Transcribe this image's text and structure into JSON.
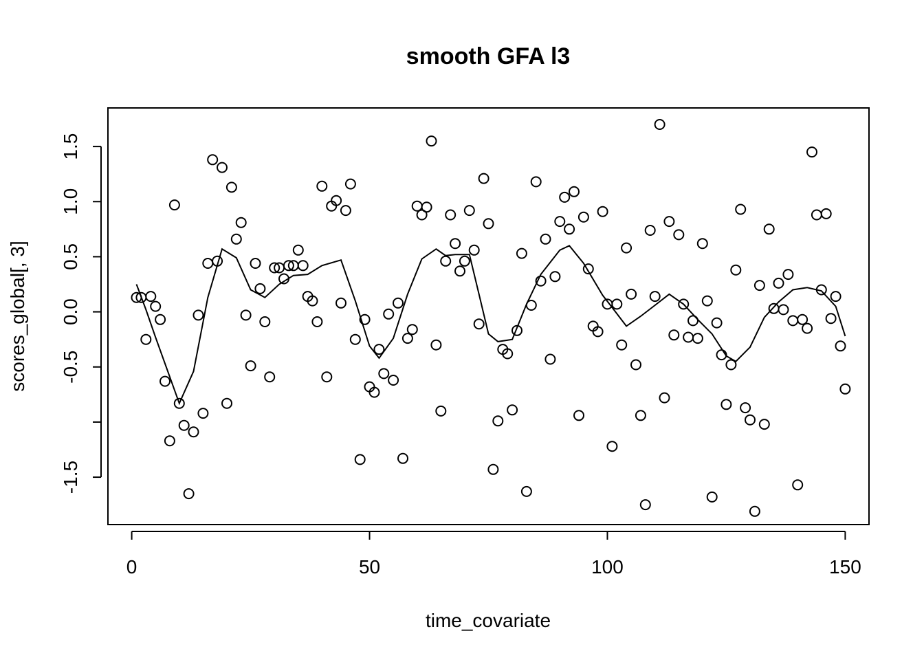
{
  "chart_data": {
    "type": "scatter",
    "title": "smooth GFA l3",
    "xlabel": "time_covariate",
    "ylabel": "scores_global[, 3]",
    "xlim": [
      -5,
      155
    ],
    "ylim": [
      -1.93,
      1.85
    ],
    "x_ticks": [
      0,
      50,
      100,
      150
    ],
    "x_tick_labels": [
      "0",
      "50",
      "100",
      "150"
    ],
    "y_ticks": [
      -1.5,
      -1.0,
      -0.5,
      0.0,
      0.5,
      1.0,
      1.5
    ],
    "y_tick_labels": [
      "-1.5",
      "",
      "-0.5",
      "0.0",
      "0.5",
      "1.0",
      "1.5"
    ],
    "grid": false,
    "series": [
      {
        "kind": "points",
        "marker": "open-circle",
        "x": [
          1,
          2,
          3,
          4,
          5,
          6,
          7,
          8,
          9,
          10,
          11,
          12,
          13,
          14,
          15,
          16,
          17,
          18,
          19,
          20,
          21,
          22,
          23,
          24,
          25,
          26,
          27,
          28,
          29,
          30,
          31,
          32,
          33,
          34,
          35,
          36,
          37,
          38,
          39,
          40,
          41,
          42,
          43,
          44,
          45,
          46,
          47,
          48,
          49,
          50,
          51,
          52,
          53,
          54,
          55,
          56,
          57,
          58,
          59,
          60,
          61,
          62,
          63,
          64,
          65,
          66,
          67,
          68,
          69,
          70,
          71,
          72,
          73,
          74,
          75,
          76,
          77,
          78,
          79,
          80,
          81,
          82,
          83,
          84,
          85,
          86,
          87,
          88,
          89,
          90,
          91,
          92,
          93,
          94,
          95,
          96,
          97,
          98,
          99,
          100,
          101,
          102,
          103,
          104,
          105,
          106,
          107,
          108,
          109,
          110,
          111,
          112,
          113,
          114,
          115,
          116,
          117,
          118,
          119,
          120,
          121,
          122,
          123,
          124,
          125,
          126,
          127,
          128,
          129,
          130,
          131,
          132,
          133,
          134,
          135,
          136,
          137,
          138,
          139,
          140,
          141,
          142,
          143,
          144,
          145,
          146,
          147,
          148,
          149,
          150
        ],
        "y": [
          0.13,
          0.13,
          -0.25,
          0.14,
          0.05,
          -0.07,
          -0.63,
          -1.17,
          0.97,
          -0.83,
          -1.03,
          -1.65,
          -1.09,
          -0.03,
          -0.92,
          0.44,
          1.38,
          0.46,
          1.31,
          -0.83,
          1.13,
          0.66,
          0.81,
          -0.03,
          -0.49,
          0.44,
          0.21,
          -0.09,
          -0.59,
          0.4,
          0.4,
          0.3,
          0.42,
          0.42,
          0.56,
          0.42,
          0.14,
          0.1,
          -0.09,
          1.14,
          -0.59,
          0.96,
          1.01,
          0.08,
          0.92,
          1.16,
          -0.25,
          -1.34,
          -0.07,
          -0.68,
          -0.73,
          -0.34,
          -0.56,
          -0.02,
          -0.62,
          0.08,
          -1.33,
          -0.24,
          -0.16,
          0.96,
          0.88,
          0.95,
          1.55,
          -0.3,
          -0.9,
          0.46,
          0.88,
          0.62,
          0.37,
          0.46,
          0.92,
          0.56,
          -0.11,
          1.21,
          0.8,
          -1.43,
          -0.99,
          -0.34,
          -0.38,
          -0.89,
          -0.17,
          0.53,
          -1.63,
          0.06,
          1.18,
          0.28,
          0.66,
          -0.43,
          0.32,
          0.82,
          1.04,
          0.75,
          1.09,
          -0.94,
          0.86,
          0.39,
          -0.13,
          -0.18,
          0.91,
          0.07,
          -1.22,
          0.07,
          -0.3,
          0.58,
          0.16,
          -0.48,
          -0.94,
          -1.75,
          0.74,
          0.14,
          1.7,
          -0.78,
          0.82,
          -0.21,
          0.7,
          0.07,
          -0.23,
          -0.08,
          -0.24,
          0.62,
          0.1,
          -1.68,
          -0.1,
          -0.39,
          -0.84,
          -0.48,
          0.38,
          0.93,
          -0.87,
          -0.98,
          -1.81,
          0.24,
          -1.02,
          0.75,
          0.03,
          0.26,
          0.02,
          0.34,
          -0.08,
          -1.57,
          -0.07,
          -0.15,
          1.45,
          0.88,
          0.2,
          0.89,
          -0.06,
          0.14,
          -0.31,
          -0.7
        ]
      },
      {
        "kind": "line",
        "x": [
          1,
          3,
          5,
          7,
          10,
          13,
          16,
          19,
          22,
          25,
          28,
          31,
          34,
          37,
          40,
          44,
          47,
          50,
          52,
          55,
          58,
          61,
          64,
          66,
          68,
          71,
          73,
          75,
          77,
          80,
          83,
          86,
          90,
          92,
          95,
          99,
          101,
          104,
          107,
          110,
          113,
          116,
          119,
          122,
          125,
          127,
          130,
          133,
          136,
          139,
          142,
          145,
          148,
          150
        ],
        "y": [
          0.25,
          0.02,
          -0.23,
          -0.47,
          -0.83,
          -0.54,
          0.13,
          0.57,
          0.49,
          0.2,
          0.13,
          0.25,
          0.33,
          0.34,
          0.42,
          0.47,
          0.1,
          -0.31,
          -0.42,
          -0.24,
          0.16,
          0.48,
          0.57,
          0.51,
          0.52,
          0.52,
          0.16,
          -0.2,
          -0.27,
          -0.25,
          0.07,
          0.34,
          0.56,
          0.6,
          0.44,
          0.15,
          0.04,
          -0.13,
          -0.04,
          0.06,
          0.16,
          0.07,
          -0.07,
          -0.2,
          -0.4,
          -0.45,
          -0.32,
          -0.05,
          0.09,
          0.2,
          0.22,
          0.19,
          0.05,
          -0.22
        ]
      }
    ]
  }
}
